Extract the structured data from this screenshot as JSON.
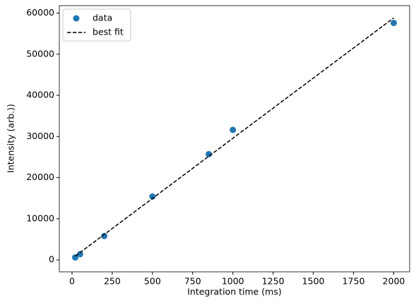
{
  "chart_data": {
    "type": "scatter",
    "x_label": "Integration time (ms)",
    "y_label": "Intensity (arb.))",
    "x": [
      20,
      50,
      200,
      500,
      850,
      1000,
      2000
    ],
    "series": [
      {
        "name": "data",
        "type": "scatter",
        "color": "#1f77b4",
        "values": [
          600,
          1400,
          5800,
          15400,
          25700,
          31600,
          57600
        ]
      },
      {
        "name": "best fit",
        "type": "line",
        "linestyle": "dashed",
        "color": "#000000",
        "values": [
          900,
          1780,
          6170,
          14940,
          25180,
          29570,
          58820
        ]
      }
    ],
    "xlim": [
      -79,
      2099
    ],
    "xticks": [
      0,
      250,
      500,
      750,
      1000,
      1250,
      1500,
      1750,
      2000
    ],
    "ylim": [
      -2900,
      61800
    ],
    "yticks": [
      0,
      10000,
      20000,
      30000,
      40000,
      50000,
      60000
    ],
    "grid": false,
    "legend": "upper left"
  }
}
